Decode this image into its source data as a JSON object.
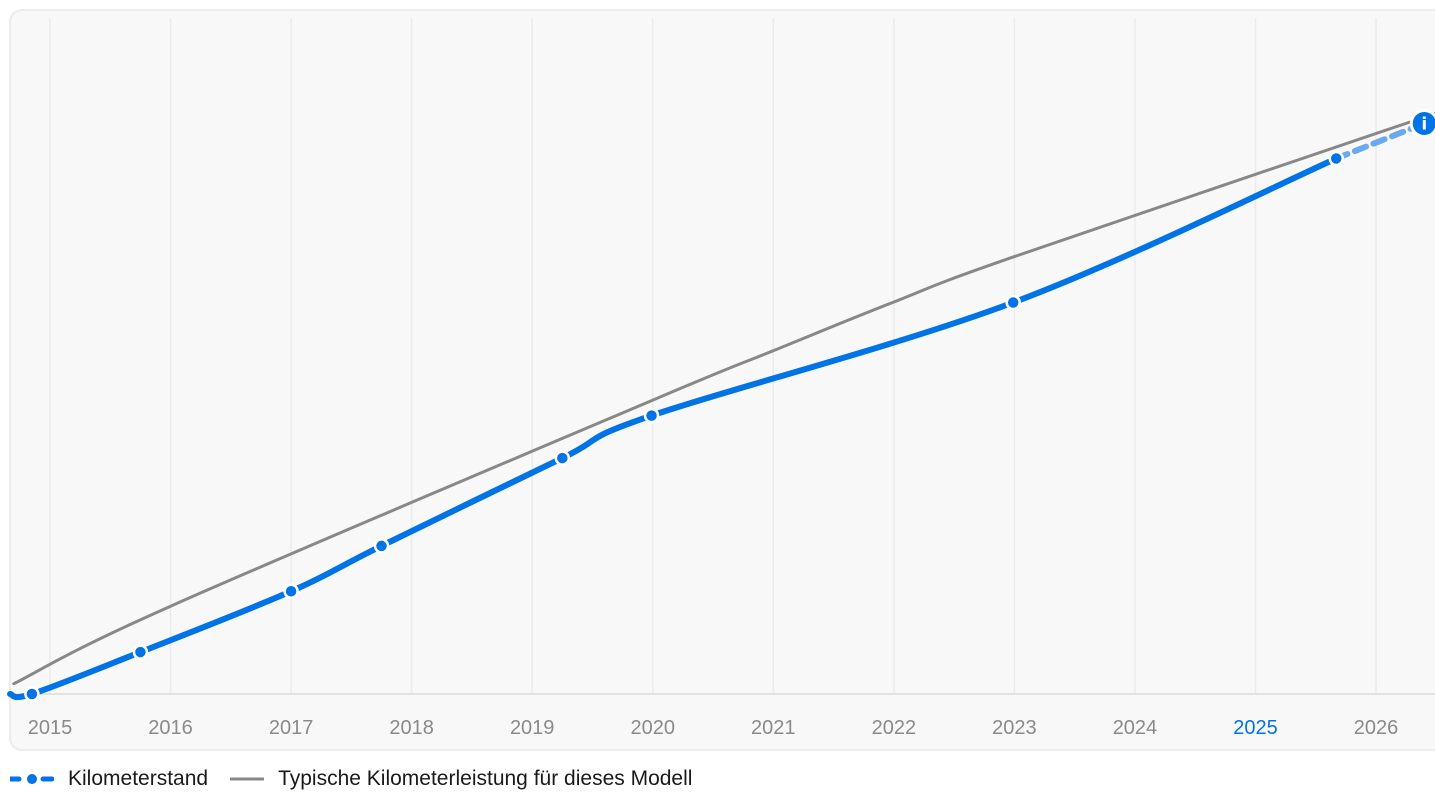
{
  "chart_data": {
    "type": "line",
    "x_ticks": [
      "2015",
      "2016",
      "2017",
      "2018",
      "2019",
      "2020",
      "2021",
      "2022",
      "2023",
      "2024",
      "2025",
      "2026"
    ],
    "highlighted_tick": "2025",
    "xlim": [
      2014.7,
      2026.5
    ],
    "ylim": [
      0,
      100
    ],
    "grid": "vertical",
    "legend_position": "bottom-left",
    "series": [
      {
        "name": "Kilometerstand",
        "color": "#0073e6",
        "style": "solid-with-dots",
        "points": [
          {
            "x": 2014.85,
            "y": 0
          },
          {
            "x": 2015.75,
            "y": 7.3
          },
          {
            "x": 2017.0,
            "y": 17.9
          },
          {
            "x": 2017.75,
            "y": 25.8
          },
          {
            "x": 2019.25,
            "y": 41.1
          },
          {
            "x": 2019.99,
            "y": 48.5
          },
          {
            "x": 2022.99,
            "y": 68.2
          },
          {
            "x": 2025.67,
            "y": 93.3
          }
        ]
      },
      {
        "name": "Kilometerstand",
        "color": "#0073e6",
        "style": "dashed-projection",
        "points": [
          {
            "x": 2025.67,
            "y": 93.3
          },
          {
            "x": 2026.4,
            "y": 99.4
          }
        ]
      },
      {
        "name": "Typische Kilometerleistung für dieses Modell",
        "color": "#888888",
        "style": "solid",
        "points": [
          {
            "x": 2014.7,
            "y": 1.8
          },
          {
            "x": 2016.0,
            "y": 15.3
          },
          {
            "x": 2020.0,
            "y": 51.2
          },
          {
            "x": 2021.0,
            "y": 59.8
          },
          {
            "x": 2022.0,
            "y": 68.3
          },
          {
            "x": 2023.0,
            "y": 76.2
          },
          {
            "x": 2026.5,
            "y": 101.2
          }
        ]
      }
    ],
    "info_marker": {
      "x": 2026.4,
      "y": 99.4,
      "icon": "info-icon",
      "label": "i"
    }
  },
  "legend": {
    "items": [
      {
        "label": "Kilometerstand",
        "color": "#0073e6",
        "icon": "dashed-dot-line-icon"
      },
      {
        "label": "Typische Kilometerleistung für dieses Modell",
        "color": "#888888",
        "icon": "line-icon"
      }
    ]
  }
}
